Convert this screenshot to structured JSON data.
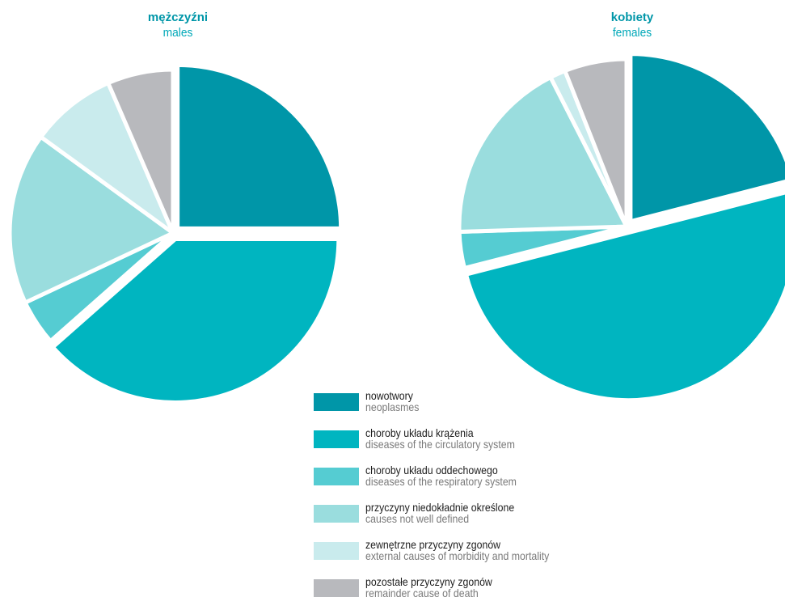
{
  "chart_data": [
    {
      "type": "pie",
      "title": "mężczyźni",
      "subtitle": "males",
      "categories": [
        "nowotwory",
        "choroby układu krążenia",
        "choroby układu oddechowego",
        "przyczyny niedokładnie określone",
        "zewnętrzne przyczyny zgonów",
        "pozostałe przyczyny zgonów"
      ],
      "values": [
        25.0,
        38.5,
        4.5,
        17.0,
        8.5,
        6.5
      ],
      "exploded": [
        true,
        true,
        false,
        false,
        false,
        false
      ]
    },
    {
      "type": "pie",
      "title": "kobiety",
      "subtitle": "females",
      "categories": [
        "nowotwory",
        "choroby układu krążenia",
        "choroby układu oddechowego",
        "przyczyny niedokładnie określone",
        "zewnętrzne przyczyny zgonów",
        "pozostałe przyczyny zgonów"
      ],
      "values": [
        21.0,
        50.0,
        3.5,
        18.0,
        1.5,
        6.0
      ],
      "exploded": [
        true,
        true,
        false,
        false,
        false,
        false
      ]
    }
  ],
  "legend": [
    {
      "pl": "nowotwory",
      "en": "neoplasmes",
      "color": "#0096a8"
    },
    {
      "pl": "choroby układu krążenia",
      "en": "diseases of the circulatory system",
      "color": "#00b5c0"
    },
    {
      "pl": "choroby układu oddechowego",
      "en": "diseases of the respiratory system",
      "color": "#55ccd2"
    },
    {
      "pl": "przyczyny niedokładnie określone",
      "en": "causes not well defined",
      "color": "#9addde"
    },
    {
      "pl": "zewnętrzne przyczyny zgonów",
      "en": "external causes of morbidity and mortality",
      "color": "#c9ebed"
    },
    {
      "pl": "pozostałe przyczyny zgonów",
      "en": "remainder cause of death",
      "color": "#b8b9bd"
    }
  ]
}
